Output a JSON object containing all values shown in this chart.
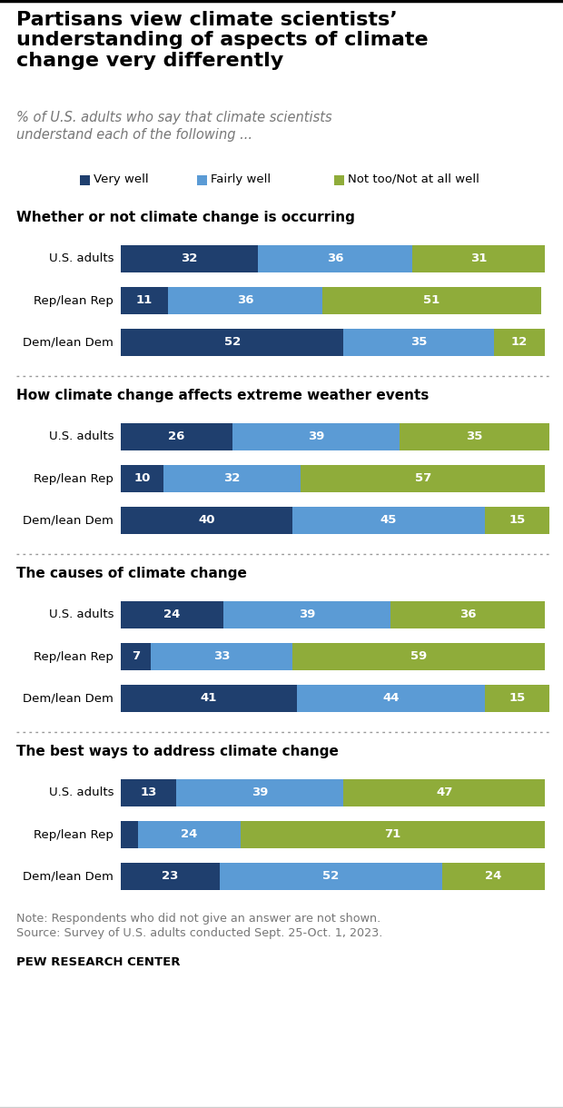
{
  "title": "Partisans view climate scientists’\nunderstanding of aspects of climate\nchange very differently",
  "subtitle": "% of U.S. adults who say that climate scientists\nunderstand each of the following ...",
  "legend_labels": [
    "Very well",
    "Fairly well",
    "Not too/Not at all well"
  ],
  "colors": [
    "#1f3f6e",
    "#5b9bd5",
    "#8fac3a"
  ],
  "sections": [
    {
      "heading": "Whether or not climate change is occurring",
      "rows": [
        {
          "label": "U.S. adults",
          "values": [
            32,
            36,
            31
          ]
        },
        {
          "label": "Rep/lean Rep",
          "values": [
            11,
            36,
            51
          ]
        },
        {
          "label": "Dem/lean Dem",
          "values": [
            52,
            35,
            12
          ]
        }
      ]
    },
    {
      "heading": "How climate change affects extreme weather events",
      "rows": [
        {
          "label": "U.S. adults",
          "values": [
            26,
            39,
            35
          ]
        },
        {
          "label": "Rep/lean Rep",
          "values": [
            10,
            32,
            57
          ]
        },
        {
          "label": "Dem/lean Dem",
          "values": [
            40,
            45,
            15
          ]
        }
      ]
    },
    {
      "heading": "The causes of climate change",
      "rows": [
        {
          "label": "U.S. adults",
          "values": [
            24,
            39,
            36
          ]
        },
        {
          "label": "Rep/lean Rep",
          "values": [
            7,
            33,
            59
          ]
        },
        {
          "label": "Dem/lean Dem",
          "values": [
            41,
            44,
            15
          ]
        }
      ]
    },
    {
      "heading": "The best ways to address climate change",
      "rows": [
        {
          "label": "U.S. adults",
          "values": [
            13,
            39,
            47
          ]
        },
        {
          "label": "Rep/lean Rep",
          "values": [
            4,
            24,
            71
          ]
        },
        {
          "label": "Dem/lean Dem",
          "values": [
            23,
            52,
            24
          ]
        }
      ]
    }
  ],
  "note_line1": "Note: Respondents who did not give an answer are not shown.",
  "note_line2": "Source: Survey of U.S. adults conducted Sept. 25-Oct. 1, 2023.",
  "source_label": "PEW RESEARCH CENTER",
  "background_color": "#ffffff"
}
